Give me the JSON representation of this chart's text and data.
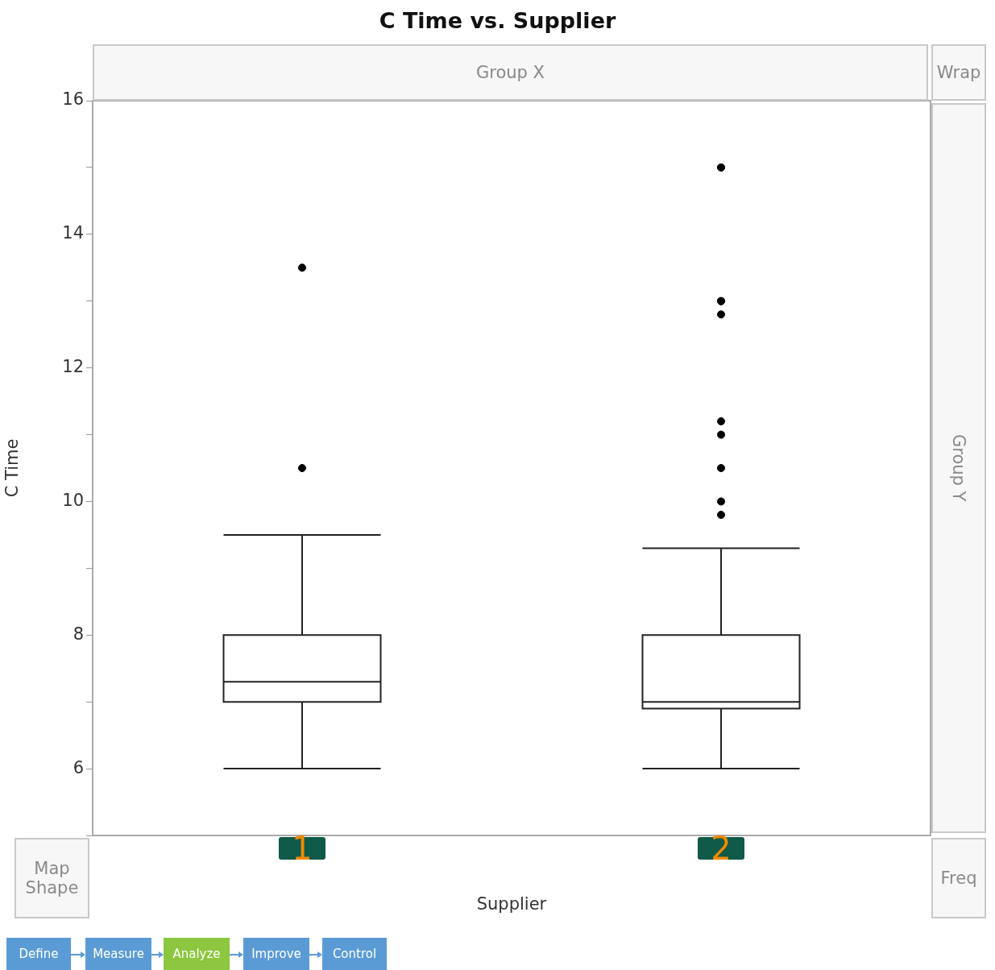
{
  "chart_data": {
    "type": "box",
    "title": "C Time vs. Supplier",
    "xlabel": "Supplier",
    "ylabel": "C Time",
    "categories": [
      "1",
      "2"
    ],
    "ylim": [
      5,
      16
    ],
    "yticks": [
      {
        "value": 5,
        "label": null
      },
      6,
      {
        "value": 7,
        "label": null
      },
      8,
      {
        "value": 9,
        "label": null
      },
      10,
      {
        "value": 11,
        "label": null
      },
      12,
      {
        "value": 13,
        "label": null
      },
      14,
      {
        "value": 15,
        "label": null
      },
      16
    ],
    "grid": false,
    "boxes": [
      {
        "low": 6,
        "q1": 7,
        "median": 7.3,
        "q3": 8,
        "high": 9.5,
        "outliers": [
          13.5,
          10.5
        ]
      },
      {
        "low": 6,
        "q1": 6.9,
        "median": 7,
        "q3": 8,
        "high": 9.3,
        "outliers": [
          15,
          15,
          13,
          13,
          12.8,
          11.2,
          11,
          10.5,
          10,
          9.8
        ]
      }
    ],
    "annotations": [
      "Group X",
      "Wrap",
      "Group Y",
      "Map Shape",
      "Freq",
      "Define",
      "Measure",
      "Analyze",
      "Improve",
      "Control"
    ]
  }
}
